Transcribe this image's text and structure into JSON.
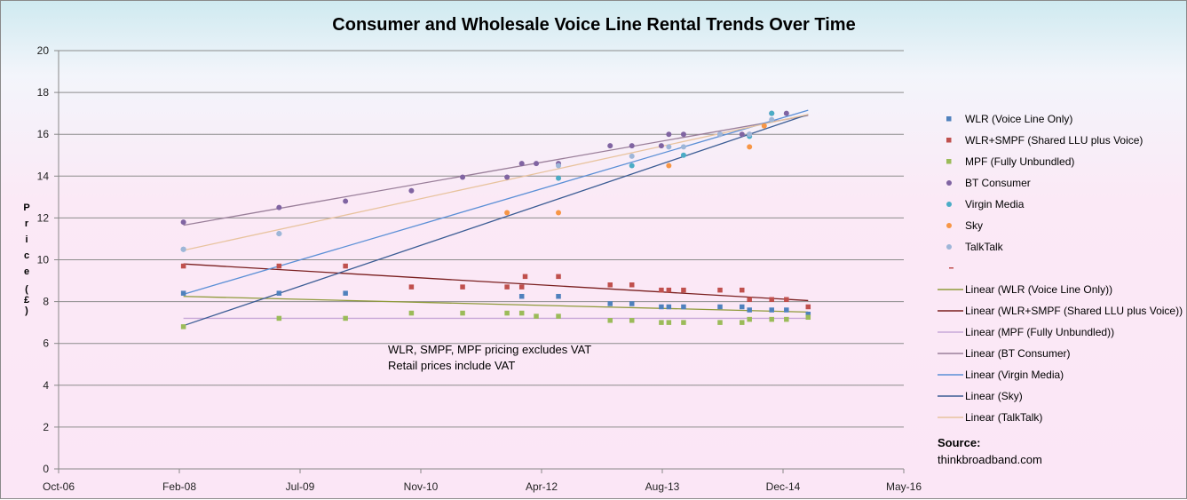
{
  "chart_data": {
    "type": "scatter",
    "title": "Consumer and Wholesale Voice Line Rental Trends Over Time",
    "ylabel_chars": [
      "P",
      "r",
      "i",
      "c",
      "e",
      "(",
      "£",
      ")"
    ],
    "xlabel": "",
    "x_ticks": [
      "Oct-06",
      "Feb-08",
      "Jul-09",
      "Nov-10",
      "Apr-12",
      "Aug-13",
      "Dec-14",
      "May-16"
    ],
    "x_range": [
      "2006-10-01",
      "2016-05-01"
    ],
    "ylim": [
      0,
      20
    ],
    "y_ticks": [
      0,
      2,
      4,
      6,
      8,
      10,
      12,
      14,
      16,
      18,
      20
    ],
    "grid": true,
    "legend_position": "right",
    "series": [
      {
        "name": "WLR (Voice Line Only)",
        "marker": "square",
        "color": "#4f81bd",
        "points": [
          [
            "2008-03-01",
            8.4
          ],
          [
            "2009-04-01",
            8.4
          ],
          [
            "2010-01-01",
            8.4
          ],
          [
            "2012-01-01",
            8.25
          ],
          [
            "2012-06-01",
            8.25
          ],
          [
            "2013-01-01",
            7.9
          ],
          [
            "2013-04-01",
            7.9
          ],
          [
            "2013-08-01",
            7.75
          ],
          [
            "2013-09-01",
            7.75
          ],
          [
            "2013-11-01",
            7.75
          ],
          [
            "2014-04-01",
            7.75
          ],
          [
            "2014-07-01",
            7.75
          ],
          [
            "2014-08-01",
            7.6
          ],
          [
            "2014-11-01",
            7.6
          ],
          [
            "2015-01-01",
            7.6
          ],
          [
            "2015-04-01",
            7.4
          ]
        ]
      },
      {
        "name": "WLR+SMPF (Shared LLU plus Voice)",
        "marker": "square",
        "color": "#c0504d",
        "points": [
          [
            "2008-03-01",
            9.7
          ],
          [
            "2009-04-01",
            9.7
          ],
          [
            "2010-01-01",
            9.7
          ],
          [
            "2010-10-01",
            8.7
          ],
          [
            "2011-05-01",
            8.7
          ],
          [
            "2011-11-01",
            8.7
          ],
          [
            "2012-01-15",
            9.2
          ],
          [
            "2012-01-01",
            8.7
          ],
          [
            "2012-06-01",
            9.2
          ],
          [
            "2013-01-01",
            8.8
          ],
          [
            "2013-04-01",
            8.8
          ],
          [
            "2013-08-01",
            8.55
          ],
          [
            "2013-09-01",
            8.55
          ],
          [
            "2013-11-01",
            8.55
          ],
          [
            "2014-04-01",
            8.55
          ],
          [
            "2014-07-01",
            8.55
          ],
          [
            "2014-08-01",
            8.1
          ],
          [
            "2014-11-01",
            8.1
          ],
          [
            "2015-01-01",
            8.1
          ],
          [
            "2015-04-01",
            7.75
          ]
        ]
      },
      {
        "name": "MPF (Fully Unbundled)",
        "marker": "square",
        "color": "#9bbb59",
        "points": [
          [
            "2008-03-01",
            6.8
          ],
          [
            "2009-04-01",
            7.2
          ],
          [
            "2010-01-01",
            7.2
          ],
          [
            "2010-10-01",
            7.45
          ],
          [
            "2011-05-01",
            7.45
          ],
          [
            "2011-11-01",
            7.45
          ],
          [
            "2012-01-01",
            7.45
          ],
          [
            "2012-03-01",
            7.3
          ],
          [
            "2012-06-01",
            7.3
          ],
          [
            "2013-01-01",
            7.1
          ],
          [
            "2013-04-01",
            7.1
          ],
          [
            "2013-08-01",
            7.0
          ],
          [
            "2013-09-01",
            7.0
          ],
          [
            "2013-11-01",
            7.0
          ],
          [
            "2014-04-01",
            7.0
          ],
          [
            "2014-07-01",
            7.0
          ],
          [
            "2014-08-01",
            7.15
          ],
          [
            "2014-11-01",
            7.15
          ],
          [
            "2015-01-01",
            7.15
          ],
          [
            "2015-04-01",
            7.25
          ]
        ]
      },
      {
        "name": "BT Consumer",
        "marker": "circle",
        "color": "#8064a2",
        "points": [
          [
            "2008-03-01",
            11.8
          ],
          [
            "2009-04-01",
            12.5
          ],
          [
            "2010-01-01",
            12.8
          ],
          [
            "2010-10-01",
            13.3
          ],
          [
            "2011-05-01",
            13.95
          ],
          [
            "2011-11-01",
            13.95
          ],
          [
            "2012-01-01",
            14.6
          ],
          [
            "2012-03-01",
            14.6
          ],
          [
            "2012-06-01",
            14.6
          ],
          [
            "2013-01-01",
            15.45
          ],
          [
            "2013-04-01",
            15.45
          ],
          [
            "2013-08-01",
            15.45
          ],
          [
            "2013-09-01",
            16.0
          ],
          [
            "2013-11-01",
            16.0
          ],
          [
            "2014-04-01",
            16.0
          ],
          [
            "2014-07-01",
            16.0
          ],
          [
            "2014-08-01",
            16.0
          ],
          [
            "2014-11-01",
            17.0
          ],
          [
            "2015-01-01",
            17.0
          ]
        ]
      },
      {
        "name": "Virgin Media",
        "marker": "circle",
        "color": "#4bacc6",
        "points": [
          [
            "2008-03-01",
            10.5
          ],
          [
            "2009-04-01",
            11.25
          ],
          [
            "2012-06-01",
            13.9
          ],
          [
            "2013-04-01",
            14.5
          ],
          [
            "2013-11-01",
            15.0
          ],
          [
            "2014-08-01",
            15.9
          ],
          [
            "2014-11-01",
            17.0
          ]
        ]
      },
      {
        "name": "Sky",
        "marker": "circle",
        "color": "#f79646",
        "points": [
          [
            "2011-11-01",
            12.25
          ],
          [
            "2012-06-01",
            12.25
          ],
          [
            "2013-09-01",
            14.5
          ],
          [
            "2014-08-01",
            15.4
          ],
          [
            "2014-10-01",
            16.4
          ]
        ]
      },
      {
        "name": "TalkTalk",
        "marker": "circle",
        "color": "#9eb6d8",
        "points": [
          [
            "2008-03-01",
            10.5
          ],
          [
            "2009-04-01",
            11.25
          ],
          [
            "2012-06-01",
            14.5
          ],
          [
            "2013-04-01",
            14.95
          ],
          [
            "2013-09-01",
            15.4
          ],
          [
            "2013-11-01",
            15.4
          ],
          [
            "2014-04-01",
            16.0
          ],
          [
            "2014-08-01",
            16.0
          ],
          [
            "2014-11-01",
            16.7
          ]
        ]
      }
    ],
    "trendlines": [
      {
        "name": "Linear (WLR (Voice Line Only))",
        "color": "#8f9a3a",
        "start": [
          "2008-03-01",
          8.25
        ],
        "end": [
          "2015-04-01",
          7.5
        ]
      },
      {
        "name": "Linear (WLR+SMPF (Shared LLU plus Voice))",
        "color": "#7a1f1f",
        "start": [
          "2008-03-01",
          9.8
        ],
        "end": [
          "2015-04-01",
          8.05
        ]
      },
      {
        "name": "Linear (MPF (Fully Unbundled))",
        "color": "#c8a8d8",
        "start": [
          "2008-03-01",
          7.2
        ],
        "end": [
          "2015-04-01",
          7.2
        ]
      },
      {
        "name": "Linear (BT Consumer)",
        "color": "#9a7f9a",
        "start": [
          "2008-03-01",
          11.65
        ],
        "end": [
          "2015-04-01",
          16.9
        ]
      },
      {
        "name": "Linear (Virgin Media)",
        "color": "#5b8fd6",
        "start": [
          "2008-03-01",
          8.35
        ],
        "end": [
          "2015-04-01",
          17.15
        ]
      },
      {
        "name": "Linear (Sky)",
        "color": "#3b5c94",
        "start": [
          "2008-03-01",
          6.85
        ],
        "end": [
          "2015-04-01",
          16.95
        ]
      },
      {
        "name": "Linear (TalkTalk)",
        "color": "#e8c39e",
        "start": [
          "2008-03-01",
          10.45
        ],
        "end": [
          "2015-04-01",
          16.95
        ]
      }
    ],
    "annotations": [
      "WLR, SMPF, MPF pricing excludes VAT",
      "Retail prices include VAT"
    ]
  },
  "source": {
    "label": "Source:",
    "value": "thinkbroadband.com"
  }
}
